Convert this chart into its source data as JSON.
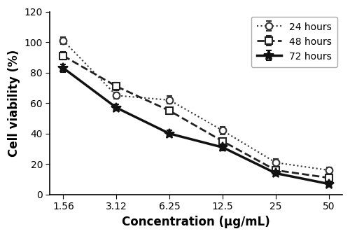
{
  "x_labels": [
    "1.56",
    "3.12",
    "6.25",
    "12.5",
    "25",
    "50"
  ],
  "x_values": [
    1.56,
    3.12,
    6.25,
    12.5,
    25,
    50
  ],
  "series": {
    "24h": {
      "y": [
        101,
        65,
        62,
        42,
        21,
        16
      ],
      "yerr": [
        2.5,
        2.0,
        2.5,
        2.5,
        2.5,
        2.0
      ],
      "label": "24 hours",
      "linestyle": "dotted",
      "marker": "o",
      "color": "#333333",
      "linewidth": 1.5,
      "markersize": 7
    },
    "48h": {
      "y": [
        91,
        71,
        55,
        35,
        16,
        11
      ],
      "yerr": [
        2.5,
        2.5,
        2.0,
        2.0,
        2.0,
        1.5
      ],
      "label": "48 hours",
      "linestyle": "dashed",
      "marker": "s",
      "color": "#222222",
      "linewidth": 2.0,
      "markersize": 7
    },
    "72h": {
      "y": [
        83,
        57,
        40,
        31,
        14,
        7
      ],
      "yerr": [
        2.5,
        2.0,
        2.0,
        2.0,
        1.5,
        1.5
      ],
      "label": "72 hours",
      "linestyle": "solid",
      "marker": "*",
      "color": "#111111",
      "linewidth": 2.5,
      "markersize": 10
    }
  },
  "ylabel": "Cell viability (%)",
  "xlabel": "Concentration (μg/mL)",
  "ylim": [
    0,
    120
  ],
  "yticks": [
    0,
    20,
    40,
    60,
    80,
    100,
    120
  ],
  "background_color": "#ffffff",
  "legend_loc": "upper right",
  "title_fontsize": 12,
  "label_fontsize": 12,
  "tick_fontsize": 10
}
